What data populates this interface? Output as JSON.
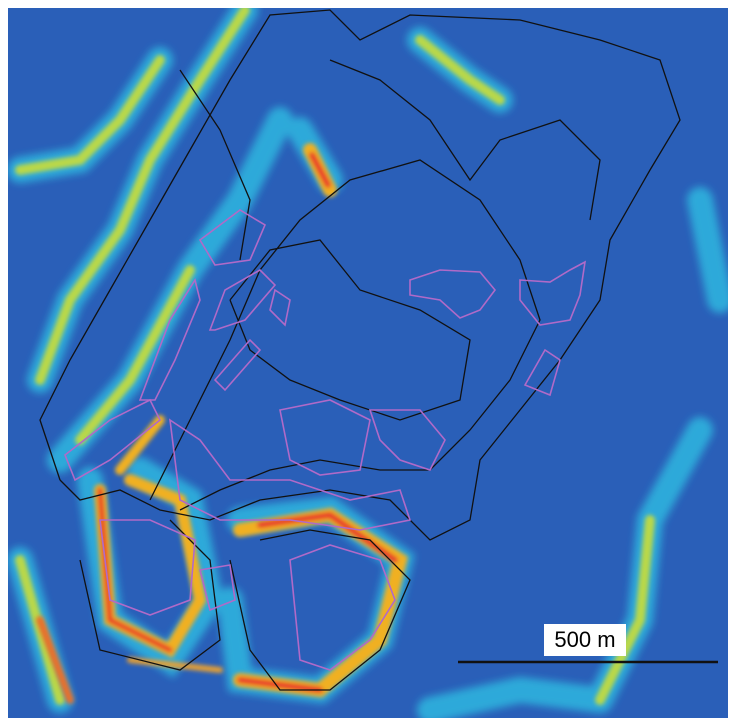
{
  "scale_bar": {
    "label": "500 m"
  }
}
